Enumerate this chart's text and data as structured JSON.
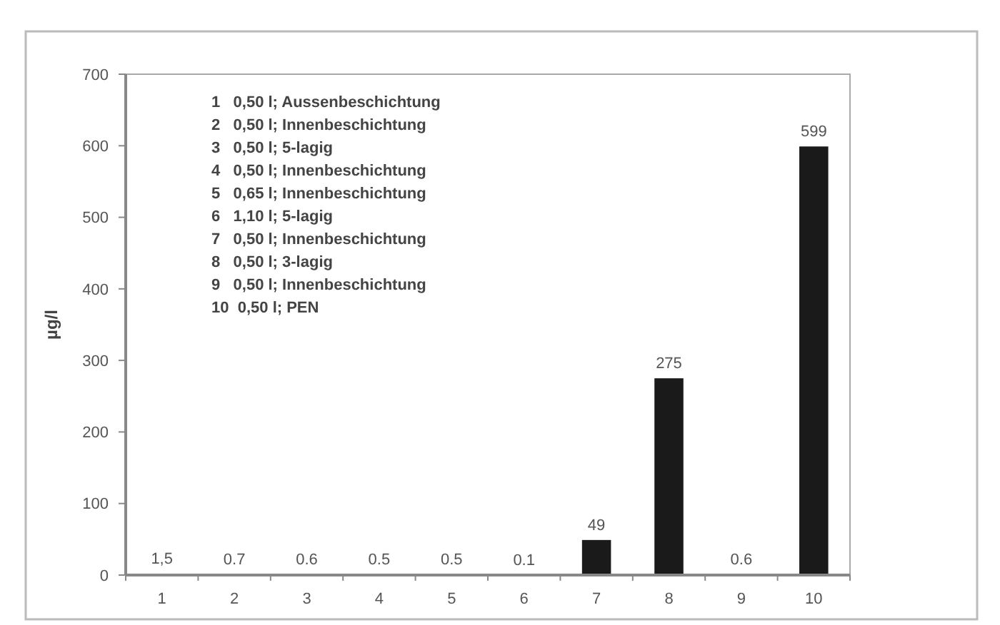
{
  "chart_data": {
    "type": "bar",
    "ylabel": "µg/l",
    "categories": [
      "1",
      "2",
      "3",
      "4",
      "5",
      "6",
      "7",
      "8",
      "9",
      "10"
    ],
    "values": [
      1.5,
      0.7,
      0.6,
      0.5,
      0.5,
      0.1,
      49,
      275,
      0.6,
      599
    ],
    "value_labels": [
      "1,5",
      "0.7",
      "0.6",
      "0.5",
      "0.5",
      "0.1",
      "49",
      "275",
      "0.6",
      "599"
    ],
    "color": "#1a1a1a",
    "ylim": [
      0,
      700
    ],
    "yticks": [
      0,
      100,
      200,
      300,
      400,
      500,
      600,
      700
    ],
    "grid": false,
    "annotations": [
      "1   0,50 l; Aussenbeschichtung",
      "2   0,50 l; Innenbeschichtung",
      "3   0,50 l; 5-lagig",
      "4   0,50 l; Innenbeschichtung",
      "5   0,65 l; Innenbeschichtung",
      "6   1,10 l; 5-lagig",
      "7   0,50 l; Innenbeschichtung",
      "8   0,50 l; 3-lagig",
      "9   0,50 l; Innenbeschichtung",
      "10  0,50 l; PEN"
    ]
  }
}
